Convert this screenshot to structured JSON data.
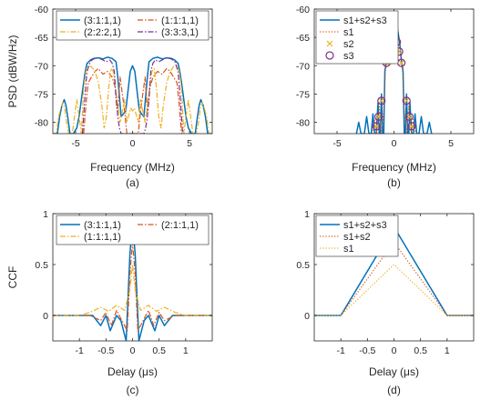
{
  "colors": {
    "blue": "#0072BD",
    "red": "#D95319",
    "yellow": "#EDB120",
    "purple": "#7E2F8E",
    "axis": "#262626"
  },
  "chart_data": [
    {
      "id": "a",
      "type": "line",
      "caption": "(a)",
      "xlabel": "Frequency (MHz)",
      "ylabel": "PSD (dBW/Hz)",
      "xlim": [
        -7,
        7
      ],
      "ylim": [
        -82,
        -60
      ],
      "xticks": [
        -5,
        0,
        5
      ],
      "xtick_labels": [
        "-5",
        "0",
        "5"
      ],
      "yticks": [
        -60,
        -65,
        -70,
        -75,
        -80
      ],
      "ytick_labels": [
        "-60",
        "-65",
        "-70",
        "-75",
        "-80"
      ],
      "legend_cols": 2,
      "legend_position": "top",
      "series": [
        {
          "name": "(3:1:1,1)",
          "color": "#0072BD",
          "style": "solid",
          "x": [
            -7,
            -6.6,
            -6.4,
            -6.2,
            -6.0,
            -5.85,
            -5.7,
            -5.5,
            -5.2,
            -4.9,
            -4.7,
            -4.5,
            -4.3,
            -4.15,
            -4.0,
            -3.7,
            -3.4,
            -3.0,
            -2.6,
            -2.2,
            -1.8,
            -1.45,
            -1.3,
            -1.0,
            -0.6,
            -0.2,
            0,
            0.2,
            0.6,
            1.0,
            1.3,
            1.45,
            1.8,
            2.2,
            2.6,
            3.0,
            3.4,
            3.7,
            4.0,
            4.15,
            4.3,
            4.5,
            4.7,
            4.9,
            5.2,
            5.5,
            5.7,
            5.85,
            6.0,
            6.2,
            6.4,
            6.6,
            7
          ],
          "y": [
            -82,
            -82,
            -79,
            -77,
            -76,
            -77,
            -79,
            -82,
            -82,
            -81,
            -79,
            -76,
            -73,
            -71,
            -69.6,
            -69,
            -68.7,
            -68.6,
            -68.8,
            -68.5,
            -68.7,
            -69.3,
            -72,
            -79,
            -78,
            -71,
            -70,
            -71,
            -78,
            -79,
            -72,
            -69.3,
            -68.7,
            -68.5,
            -68.8,
            -68.6,
            -68.7,
            -69,
            -69.6,
            -71,
            -73,
            -76,
            -79,
            -81,
            -82,
            -82,
            -79,
            -77,
            -76,
            -77,
            -79,
            -82,
            -82
          ]
        },
        {
          "name": "(1:1:1,1)",
          "color": "#D95319",
          "style": "dashdot",
          "x": [
            -4.3,
            -4.1,
            -3.9,
            -3.6,
            -3.3,
            -3.0,
            -2.6,
            -2.2,
            -1.8,
            -1.5,
            -1.3,
            -1.1,
            -0.9,
            -0.7,
            -0.5,
            0.5,
            0.7,
            0.9,
            1.1,
            1.3,
            1.5,
            1.8,
            2.2,
            2.6,
            3.0,
            3.3,
            3.6,
            3.9,
            4.1,
            4.3
          ],
          "y": [
            -82,
            -77,
            -73,
            -72,
            -71,
            -70.5,
            -71.5,
            -71,
            -72,
            -74,
            -78,
            -72,
            -75,
            -78,
            -82,
            -82,
            -78,
            -75,
            -72,
            -78,
            -74,
            -72,
            -71,
            -71.5,
            -70.5,
            -71,
            -72,
            -73,
            -77,
            -82
          ]
        },
        {
          "name": "(2:2:2,1)",
          "color": "#EDB120",
          "style": "dashdot",
          "x": [
            -7,
            -6.7,
            -6.5,
            -6.3,
            -6.1,
            -5.95,
            -5.8,
            -5.6,
            -5.3,
            -5.1,
            -4.9,
            -4.7,
            -4.5,
            -4.3,
            -4.1,
            -3.9,
            -3.6,
            -3.3,
            -3.0,
            -2.7,
            -2.5,
            -2.3,
            -2.1,
            -1.9,
            -1.7,
            -1.5,
            -1.3,
            -1.1,
            -0.9,
            -0.7,
            -0.5,
            -0.3,
            -0.15,
            0,
            0.15,
            0.3,
            0.5,
            0.7,
            0.9,
            1.1,
            1.3,
            1.5,
            1.7,
            1.9,
            2.1,
            2.3,
            2.5,
            2.7,
            3.0,
            3.3,
            3.6,
            3.9,
            4.1,
            4.3,
            4.5,
            4.7,
            4.9,
            5.1,
            5.3,
            5.6,
            5.8,
            5.95,
            6.1,
            6.3,
            6.5,
            6.7,
            7
          ],
          "y": [
            -82,
            -82,
            -79,
            -77.5,
            -76.5,
            -77.5,
            -80,
            -82,
            -82,
            -79,
            -76,
            -79,
            -82,
            -74,
            -71,
            -70,
            -70.2,
            -71,
            -73,
            -77,
            -81,
            -79,
            -74,
            -70.5,
            -71,
            -74,
            -77,
            -80,
            -78,
            -76,
            -80,
            -78.5,
            -77.5,
            -78,
            -77.5,
            -78.5,
            -80,
            -76,
            -78,
            -80,
            -77,
            -74,
            -71,
            -70.5,
            -74,
            -79,
            -81,
            -77,
            -73,
            -71,
            -70.2,
            -70,
            -71,
            -74,
            -82,
            -79,
            -76,
            -79,
            -82,
            -82,
            -80,
            -77.5,
            -76.5,
            -77.5,
            -79,
            -82,
            -82
          ]
        },
        {
          "name": "(3:3:3,1)",
          "color": "#7E2F8E",
          "style": "dashdot",
          "x": [
            -4.4,
            -4.2,
            -4.0,
            -3.7,
            -3.4,
            -3.0,
            -2.6,
            -2.3,
            -2.0,
            -1.8,
            -1.6,
            -1.45,
            -1.3,
            -1.15,
            -1.0,
            1.0,
            1.15,
            1.3,
            1.45,
            1.6,
            1.8,
            2.0,
            2.3,
            2.6,
            3.0,
            3.4,
            3.7,
            4.0,
            4.2,
            4.4
          ],
          "y": [
            -82,
            -76,
            -71,
            -69.2,
            -68.8,
            -68.6,
            -69,
            -69.3,
            -69,
            -69.5,
            -71,
            -76,
            -79,
            -81,
            -82,
            -82,
            -81,
            -79,
            -76,
            -71,
            -69.5,
            -69,
            -69.3,
            -69,
            -68.6,
            -68.8,
            -69.2,
            -71,
            -76,
            -82
          ]
        }
      ]
    },
    {
      "id": "b",
      "type": "line",
      "caption": "(b)",
      "xlabel": "Frequency (MHz)",
      "ylabel": "",
      "xlim": [
        -7,
        7
      ],
      "ylim": [
        -82,
        -60
      ],
      "xticks": [
        -5,
        0,
        5
      ],
      "xtick_labels": [
        "-5",
        "0",
        "5"
      ],
      "yticks": [
        -60,
        -65,
        -70,
        -75,
        -80
      ],
      "ytick_labels": [
        "-60",
        "-65",
        "-70",
        "-75",
        "-80"
      ],
      "legend_cols": 1,
      "legend_position": "top-left",
      "series": [
        {
          "name": "s1+s2+s3",
          "color": "#0072BD",
          "style": "solid",
          "x": [
            -3.3,
            -3.1,
            -2.9,
            -2.6,
            -2.4,
            -2.2,
            -2.0,
            -1.85,
            -1.7,
            -1.55,
            -1.4,
            -1.3,
            -1.2,
            -1.1,
            -1.0,
            -0.9,
            -0.8,
            -0.65,
            -0.5,
            -0.35,
            -0.2,
            0,
            0.2,
            0.35,
            0.5,
            0.65,
            0.8,
            0.9,
            1.0,
            1.1,
            1.2,
            1.3,
            1.4,
            1.55,
            1.7,
            1.85,
            2.0,
            2.2,
            2.4,
            2.6,
            2.9,
            3.1,
            3.3
          ],
          "y": [
            -82,
            -80,
            -82,
            -82,
            -79,
            -82,
            -82,
            -78.5,
            -82,
            -82,
            -76.5,
            -82,
            -82,
            -75,
            -82,
            -82,
            -71,
            -69,
            -66,
            -64,
            -63,
            -62.3,
            -63,
            -64,
            -66,
            -69,
            -71,
            -82,
            -82,
            -75,
            -82,
            -82,
            -76.5,
            -82,
            -82,
            -78.5,
            -82,
            -82,
            -79,
            -82,
            -82,
            -80,
            -82
          ]
        },
        {
          "name": "s1",
          "color": "#D95319",
          "style": "dotted",
          "x": [
            -1.9,
            -1.7,
            -1.5,
            -1.3,
            -1.1,
            -0.9,
            -0.75,
            -0.6,
            -0.4,
            -0.2,
            0,
            0.2,
            0.4,
            0.6,
            0.75,
            0.9,
            1.1,
            1.3,
            1.5,
            1.7,
            1.9
          ],
          "y": [
            -82,
            -79.5,
            -82,
            -77,
            -82,
            -78,
            -71,
            -68.5,
            -66.5,
            -65.5,
            -65,
            -65.5,
            -66.5,
            -68.5,
            -71,
            -78,
            -82,
            -77,
            -82,
            -79.5,
            -82
          ]
        },
        {
          "name": "s2",
          "color": "#EDB120",
          "style": "x-marker",
          "x": [
            -1.55,
            -1.35,
            -1.1,
            -0.65,
            -0.45,
            -0.25,
            0.25,
            0.45,
            0.65,
            1.1,
            1.35,
            1.55
          ],
          "y": [
            -80.7,
            -79,
            -76.2,
            -69.5,
            -67.5,
            -65.8,
            -65.8,
            -67.5,
            -69.5,
            -76.2,
            -79,
            -80.7
          ]
        },
        {
          "name": "s3",
          "color": "#7E2F8E",
          "style": "circle-marker",
          "x": [
            -1.55,
            -1.35,
            -1.1,
            -0.65,
            -0.45,
            -0.25,
            0.25,
            0.45,
            0.65,
            1.1,
            1.35,
            1.55
          ],
          "y": [
            -80.7,
            -79,
            -76.2,
            -69.5,
            -67.5,
            -65.8,
            -65.8,
            -67.5,
            -69.5,
            -76.2,
            -79,
            -80.7
          ]
        }
      ]
    },
    {
      "id": "c",
      "type": "line",
      "caption": "(c)",
      "xlabel": "Delay (μs)",
      "ylabel": "CCF",
      "xlim": [
        -1.5,
        1.5
      ],
      "ylim": [
        -0.25,
        1.0
      ],
      "xticks": [
        -1,
        -0.5,
        0,
        0.5,
        1
      ],
      "xtick_labels": [
        "-1",
        "-0.5",
        "0",
        "0.5",
        "1"
      ],
      "yticks": [
        1,
        0.5,
        0
      ],
      "ytick_labels": [
        "1",
        "0.5",
        "0"
      ],
      "legend_cols": 2,
      "legend_position": "top",
      "series": [
        {
          "name": "(3:1:1,1)",
          "color": "#0072BD",
          "style": "solid",
          "x": [
            -1.5,
            -0.75,
            -0.6,
            -0.5,
            -0.42,
            -0.3,
            -0.22,
            -0.12,
            -0.05,
            0,
            0.05,
            0.12,
            0.22,
            0.3,
            0.42,
            0.5,
            0.6,
            0.75,
            1.5
          ],
          "y": [
            0,
            0,
            -0.1,
            0,
            -0.15,
            0,
            -0.05,
            -0.25,
            0.6,
            0.92,
            0.6,
            -0.25,
            -0.05,
            0,
            -0.15,
            0,
            -0.1,
            0,
            0
          ]
        },
        {
          "name": "(2:1:1,1)",
          "color": "#D95319",
          "style": "dashdot",
          "x": [
            -1.5,
            -0.8,
            -0.6,
            -0.5,
            -0.4,
            -0.3,
            -0.2,
            -0.1,
            -0.05,
            0,
            0.05,
            0.1,
            0.2,
            0.3,
            0.4,
            0.5,
            0.6,
            0.8,
            1.5
          ],
          "y": [
            0,
            0,
            -0.05,
            0.03,
            -0.1,
            0.05,
            -0.05,
            -0.15,
            0.4,
            0.72,
            0.4,
            -0.15,
            -0.05,
            0.05,
            -0.1,
            0.03,
            -0.05,
            0,
            0
          ]
        },
        {
          "name": "(1:1:1,1)",
          "color": "#EDB120",
          "style": "dashdot",
          "x": [
            -1.5,
            -1.0,
            -0.8,
            -0.6,
            -0.45,
            -0.3,
            -0.15,
            -0.05,
            0,
            0.05,
            0.15,
            0.3,
            0.45,
            0.6,
            0.8,
            1.0,
            1.5
          ],
          "y": [
            0,
            0,
            0.03,
            0.08,
            0.04,
            0.1,
            0.05,
            0.25,
            0.5,
            0.25,
            0.05,
            0.1,
            0.04,
            0.08,
            0.03,
            0,
            0
          ]
        }
      ]
    },
    {
      "id": "d",
      "type": "line",
      "caption": "(d)",
      "xlabel": "Delay (μs)",
      "ylabel": "",
      "xlim": [
        -1.5,
        1.5
      ],
      "ylim": [
        -0.25,
        1.0
      ],
      "xticks": [
        -1,
        -0.5,
        0,
        0.5,
        1
      ],
      "xtick_labels": [
        "-1",
        "-0.5",
        "0",
        "0.5",
        "1"
      ],
      "yticks": [
        1,
        0.5,
        0
      ],
      "ytick_labels": [
        "1",
        "0.5",
        "0"
      ],
      "legend_cols": 1,
      "legend_position": "top-left",
      "series": [
        {
          "name": "s1+s2+s3",
          "color": "#0072BD",
          "style": "solid",
          "x": [
            -1.5,
            -1,
            0,
            1,
            1.5
          ],
          "y": [
            0,
            0,
            0.87,
            0,
            0
          ]
        },
        {
          "name": "s1+s2",
          "color": "#D95319",
          "style": "dotted",
          "x": [
            -1.5,
            -1,
            0,
            1,
            1.5
          ],
          "y": [
            0,
            0,
            0.72,
            0,
            0
          ]
        },
        {
          "name": "s1",
          "color": "#EDB120",
          "style": "dotted",
          "x": [
            -1.5,
            -1,
            0,
            1,
            1.5
          ],
          "y": [
            0,
            0,
            0.5,
            0,
            0
          ]
        }
      ]
    }
  ]
}
